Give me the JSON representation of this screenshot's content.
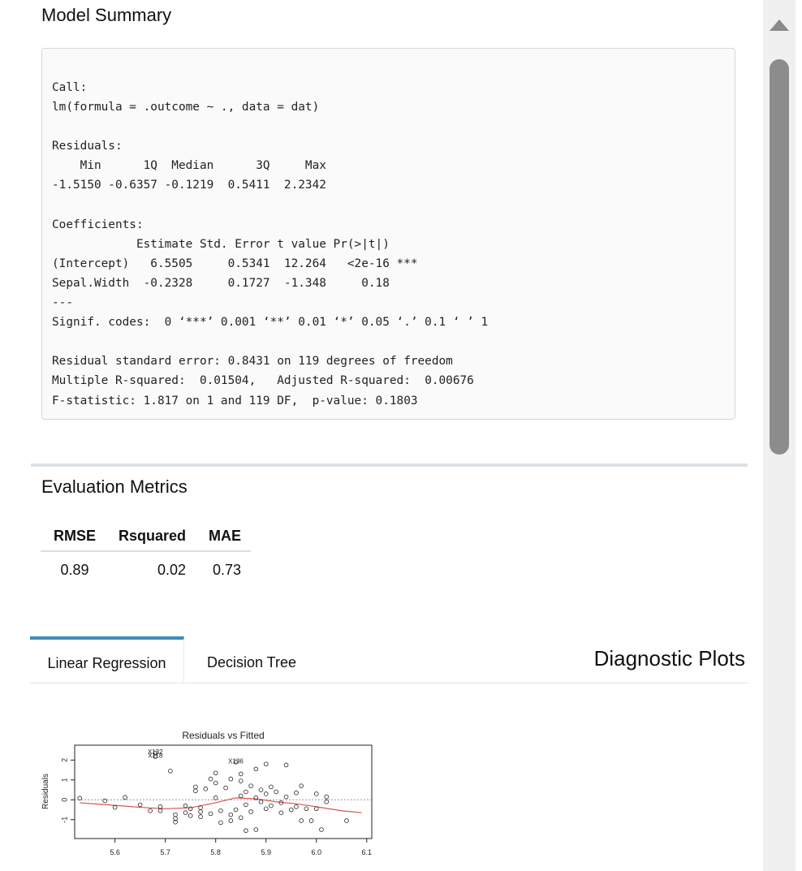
{
  "model_summary": {
    "title": "Model Summary",
    "output": "Call:\nlm(formula = .outcome ~ ., data = dat)\n\nResiduals:\n    Min      1Q  Median      3Q     Max \n-1.5150 -0.6357 -0.1219  0.5411  2.2342 \n\nCoefficients:\n            Estimate Std. Error t value Pr(>|t|)    \n(Intercept)   6.5505     0.5341  12.264   <2e-16 ***\nSepal.Width  -0.2328     0.1727  -1.348     0.18    \n---\nSignif. codes:  0 ‘***’ 0.001 ‘**’ 0.01 ‘*’ 0.05 ‘.’ 0.1 ‘ ’ 1\n\nResidual standard error: 0.8431 on 119 degrees of freedom\nMultiple R-squared:  0.01504,\tAdjusted R-squared:  0.00676 \nF-statistic: 1.817 on 1 and 119 DF,  p-value: 0.1803"
  },
  "evaluation": {
    "title": "Evaluation Metrics",
    "headers": [
      "RMSE",
      "Rsquared",
      "MAE"
    ],
    "values": [
      "0.89",
      "0.02",
      "0.73"
    ]
  },
  "tabs": {
    "items": [
      "Linear Regression",
      "Decision Tree"
    ],
    "active_index": 0,
    "accent_color": "#3c8dbc"
  },
  "diagnostic": {
    "title": "Diagnostic Plots"
  },
  "chart_data": {
    "type": "scatter",
    "title": "Residuals vs Fitted",
    "xlabel": "",
    "ylabel": "Residuals",
    "xlim": [
      5.52,
      6.11
    ],
    "ylim": [
      -1.95,
      2.75
    ],
    "xticks": [
      "5.6",
      "5.7",
      "5.8",
      "5.9",
      "6.0",
      "6.1"
    ],
    "yticks": [
      "-1",
      "0",
      "1",
      "2"
    ],
    "annotations": [
      {
        "text": "X132",
        "x": 5.68,
        "y": 2.42
      },
      {
        "text": "X118",
        "x": 5.68,
        "y": 2.23
      },
      {
        "text": "X136",
        "x": 5.84,
        "y": 1.95
      }
    ],
    "points": [
      {
        "x": 5.53,
        "y": 0.08
      },
      {
        "x": 5.58,
        "y": -0.05
      },
      {
        "x": 5.6,
        "y": -0.38
      },
      {
        "x": 5.62,
        "y": 0.12
      },
      {
        "x": 5.65,
        "y": -0.25
      },
      {
        "x": 5.67,
        "y": -0.55
      },
      {
        "x": 5.68,
        "y": 2.35
      },
      {
        "x": 5.68,
        "y": 2.18
      },
      {
        "x": 5.69,
        "y": -0.35
      },
      {
        "x": 5.69,
        "y": -0.55
      },
      {
        "x": 5.71,
        "y": 1.45
      },
      {
        "x": 5.72,
        "y": -0.75
      },
      {
        "x": 5.72,
        "y": -0.95
      },
      {
        "x": 5.72,
        "y": -1.12
      },
      {
        "x": 5.74,
        "y": -0.65
      },
      {
        "x": 5.74,
        "y": -0.3
      },
      {
        "x": 5.75,
        "y": -0.45
      },
      {
        "x": 5.75,
        "y": -0.8
      },
      {
        "x": 5.76,
        "y": 0.65
      },
      {
        "x": 5.76,
        "y": 0.45
      },
      {
        "x": 5.77,
        "y": -0.4
      },
      {
        "x": 5.77,
        "y": -0.6
      },
      {
        "x": 5.77,
        "y": -0.85
      },
      {
        "x": 5.78,
        "y": 0.55
      },
      {
        "x": 5.79,
        "y": 1.05
      },
      {
        "x": 5.79,
        "y": -0.7
      },
      {
        "x": 5.8,
        "y": 0.85
      },
      {
        "x": 5.8,
        "y": 1.35
      },
      {
        "x": 5.8,
        "y": 0.1
      },
      {
        "x": 5.81,
        "y": -0.55
      },
      {
        "x": 5.81,
        "y": -1.15
      },
      {
        "x": 5.82,
        "y": 0.6
      },
      {
        "x": 5.83,
        "y": 1.05
      },
      {
        "x": 5.83,
        "y": -0.75
      },
      {
        "x": 5.83,
        "y": -1.05
      },
      {
        "x": 5.84,
        "y": 1.9
      },
      {
        "x": 5.84,
        "y": -0.5
      },
      {
        "x": 5.85,
        "y": 0.95
      },
      {
        "x": 5.85,
        "y": 0.2
      },
      {
        "x": 5.85,
        "y": -0.9
      },
      {
        "x": 5.85,
        "y": 1.3
      },
      {
        "x": 5.86,
        "y": 0.4
      },
      {
        "x": 5.86,
        "y": -0.25
      },
      {
        "x": 5.86,
        "y": -1.55
      },
      {
        "x": 5.87,
        "y": 0.7
      },
      {
        "x": 5.87,
        "y": -0.6
      },
      {
        "x": 5.88,
        "y": 1.55
      },
      {
        "x": 5.88,
        "y": 0.1
      },
      {
        "x": 5.88,
        "y": -1.5
      },
      {
        "x": 5.89,
        "y": 0.5
      },
      {
        "x": 5.89,
        "y": -0.1
      },
      {
        "x": 5.9,
        "y": 1.8
      },
      {
        "x": 5.9,
        "y": 0.3
      },
      {
        "x": 5.9,
        "y": -0.45
      },
      {
        "x": 5.91,
        "y": 0.65
      },
      {
        "x": 5.91,
        "y": -0.3
      },
      {
        "x": 5.92,
        "y": 0.4
      },
      {
        "x": 5.93,
        "y": -0.15
      },
      {
        "x": 5.93,
        "y": -0.65
      },
      {
        "x": 5.94,
        "y": 1.75
      },
      {
        "x": 5.94,
        "y": 0.15
      },
      {
        "x": 5.95,
        "y": -0.5
      },
      {
        "x": 5.96,
        "y": 0.35
      },
      {
        "x": 5.96,
        "y": -0.35
      },
      {
        "x": 5.97,
        "y": 0.7
      },
      {
        "x": 5.97,
        "y": -1.05
      },
      {
        "x": 5.98,
        "y": -0.45
      },
      {
        "x": 5.99,
        "y": -1.05
      },
      {
        "x": 6.0,
        "y": 0.3
      },
      {
        "x": 6.0,
        "y": -0.45
      },
      {
        "x": 6.01,
        "y": -1.5
      },
      {
        "x": 6.02,
        "y": 0.15
      },
      {
        "x": 6.02,
        "y": -0.1
      },
      {
        "x": 6.06,
        "y": -1.05
      }
    ],
    "smooth_line": {
      "color": "#d9534f",
      "x": [
        5.53,
        5.6,
        5.65,
        5.7,
        5.75,
        5.8,
        5.84,
        5.88,
        5.92,
        5.96,
        6.0,
        6.05,
        6.09
      ],
      "y": [
        -0.15,
        -0.28,
        -0.38,
        -0.45,
        -0.4,
        -0.15,
        0.1,
        0.05,
        -0.1,
        -0.2,
        -0.35,
        -0.55,
        -0.65
      ]
    },
    "reference_line_y": 0
  }
}
